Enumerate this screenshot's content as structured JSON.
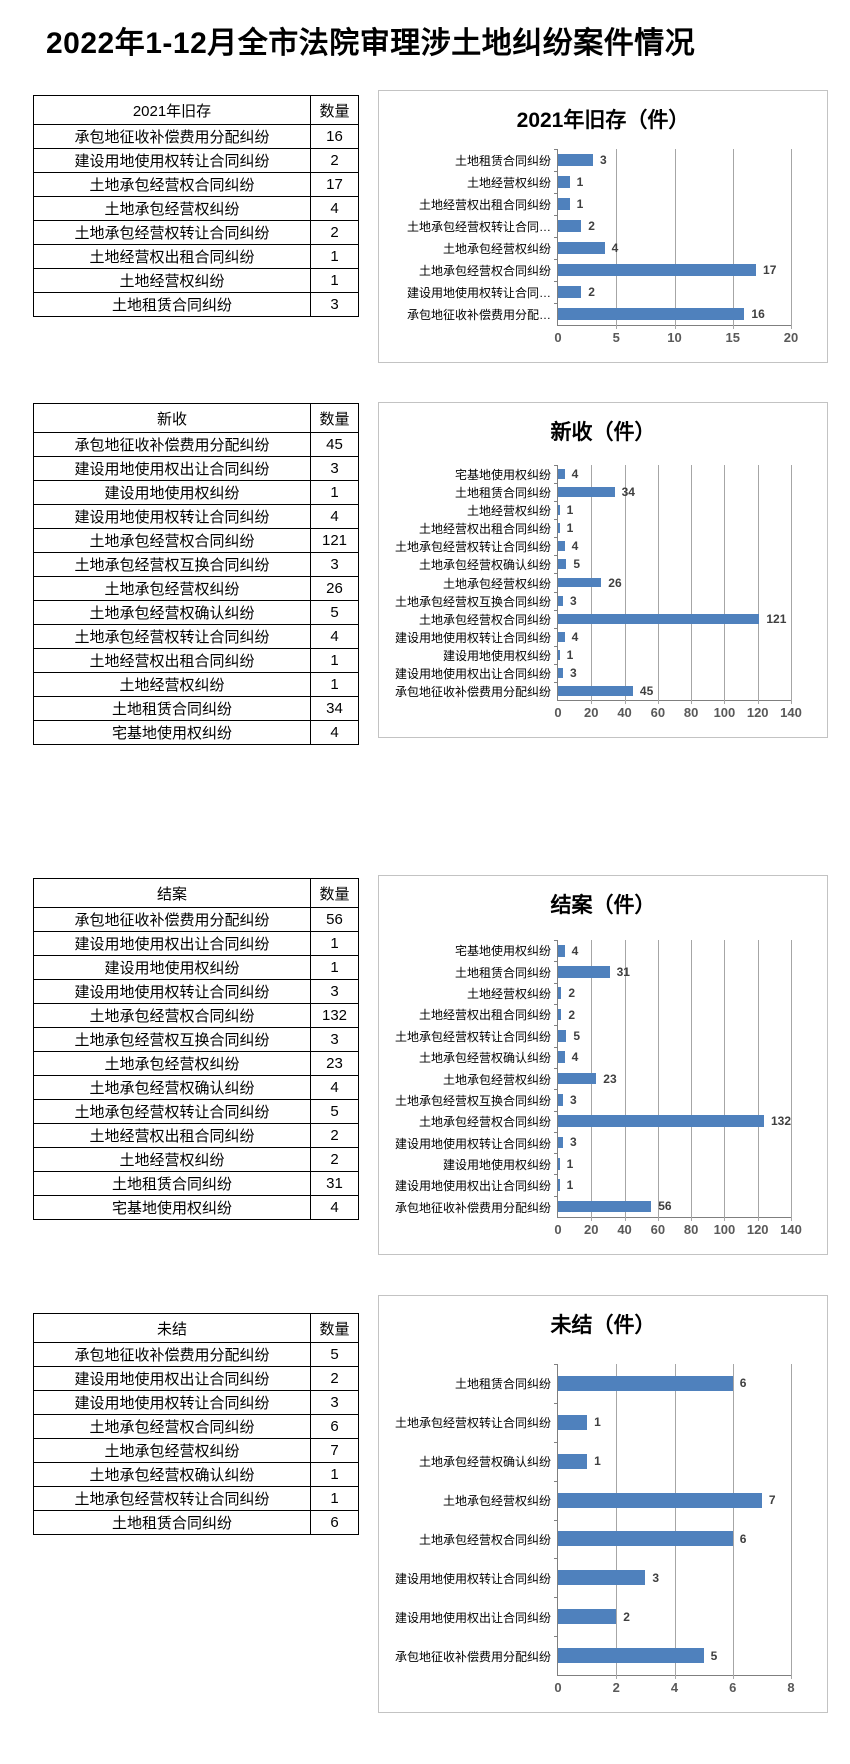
{
  "page": {
    "title": "2022年1-12月全市法院审理涉土地纠纷案件情况"
  },
  "colors": {
    "bar_fill": "#4f81bd",
    "panel_border": "#c3c3c3",
    "grid_line": "#a6a6a6",
    "table_border": "#000000",
    "tick_label": "#595959"
  },
  "sections": [
    {
      "table": {
        "category_header": "2021年旧存",
        "quantity_header": "数量",
        "rows": [
          {
            "label": "承包地征收补偿费用分配纠纷",
            "value": 16
          },
          {
            "label": "建设用地使用权转让合同纠纷",
            "value": 2
          },
          {
            "label": "土地承包经营权合同纠纷",
            "value": 17
          },
          {
            "label": "土地承包经营权纠纷",
            "value": 4
          },
          {
            "label": "土地承包经营权转让合同纠纷",
            "value": 2
          },
          {
            "label": "土地经营权出租合同纠纷",
            "value": 1
          },
          {
            "label": "土地经营权纠纷",
            "value": 1
          },
          {
            "label": "土地租赁合同纠纷",
            "value": 3
          }
        ]
      }
    },
    {
      "table": {
        "category_header": "新收",
        "quantity_header": "数量",
        "rows": [
          {
            "label": "承包地征收补偿费用分配纠纷",
            "value": 45
          },
          {
            "label": "建设用地使用权出让合同纠纷",
            "value": 3
          },
          {
            "label": "建设用地使用权纠纷",
            "value": 1
          },
          {
            "label": "建设用地使用权转让合同纠纷",
            "value": 4
          },
          {
            "label": "土地承包经营权合同纠纷",
            "value": 121
          },
          {
            "label": "土地承包经营权互换合同纠纷",
            "value": 3
          },
          {
            "label": "土地承包经营权纠纷",
            "value": 26
          },
          {
            "label": "土地承包经营权确认纠纷",
            "value": 5
          },
          {
            "label": "土地承包经营权转让合同纠纷",
            "value": 4
          },
          {
            "label": "土地经营权出租合同纠纷",
            "value": 1
          },
          {
            "label": "土地经营权纠纷",
            "value": 1
          },
          {
            "label": "土地租赁合同纠纷",
            "value": 34
          },
          {
            "label": "宅基地使用权纠纷",
            "value": 4
          }
        ]
      }
    },
    {
      "table": {
        "category_header": "结案",
        "quantity_header": "数量",
        "rows": [
          {
            "label": "承包地征收补偿费用分配纠纷",
            "value": 56
          },
          {
            "label": "建设用地使用权出让合同纠纷",
            "value": 1
          },
          {
            "label": "建设用地使用权纠纷",
            "value": 1
          },
          {
            "label": "建设用地使用权转让合同纠纷",
            "value": 3
          },
          {
            "label": "土地承包经营权合同纠纷",
            "value": 132
          },
          {
            "label": "土地承包经营权互换合同纠纷",
            "value": 3
          },
          {
            "label": "土地承包经营权纠纷",
            "value": 23
          },
          {
            "label": "土地承包经营权确认纠纷",
            "value": 4
          },
          {
            "label": "土地承包经营权转让合同纠纷",
            "value": 5
          },
          {
            "label": "土地经营权出租合同纠纷",
            "value": 2
          },
          {
            "label": "土地经营权纠纷",
            "value": 2
          },
          {
            "label": "土地租赁合同纠纷",
            "value": 31
          },
          {
            "label": "宅基地使用权纠纷",
            "value": 4
          }
        ]
      }
    },
    {
      "table": {
        "category_header": "未结",
        "quantity_header": "数量",
        "rows": [
          {
            "label": "承包地征收补偿费用分配纠纷",
            "value": 5
          },
          {
            "label": "建设用地使用权出让合同纠纷",
            "value": 2
          },
          {
            "label": "建设用地使用权转让合同纠纷",
            "value": 3
          },
          {
            "label": "土地承包经营权合同纠纷",
            "value": 6
          },
          {
            "label": "土地承包经营权纠纷",
            "value": 7
          },
          {
            "label": "土地承包经营权确认纠纷",
            "value": 1
          },
          {
            "label": "土地承包经营权转让合同纠纷",
            "value": 1
          },
          {
            "label": "土地租赁合同纠纷",
            "value": 6
          }
        ]
      }
    }
  ],
  "chart_data": [
    {
      "type": "bar",
      "orientation": "horizontal",
      "title": "2021年旧存（件）",
      "categories": [
        "土地租赁合同纠纷",
        "土地经营权纠纷",
        "土地经营权出租合同纠纷",
        "土地承包经营权转让合同…",
        "土地承包经营权纠纷",
        "土地承包经营权合同纠纷",
        "建设用地使用权转让合同…",
        "承包地征收补偿费用分配…"
      ],
      "values": [
        3,
        1,
        1,
        2,
        4,
        17,
        2,
        16
      ],
      "category_order": "top-to-bottom",
      "xlim": [
        0,
        20
      ],
      "xticks": [
        0,
        5,
        10,
        15,
        20
      ],
      "grid": true,
      "value_labels": true,
      "legend": "none"
    },
    {
      "type": "bar",
      "orientation": "horizontal",
      "title": "新收（件）",
      "categories": [
        "宅基地使用权纠纷",
        "土地租赁合同纠纷",
        "土地经营权纠纷",
        "土地经营权出租合同纠纷",
        "土地承包经营权转让合同纠纷",
        "土地承包经营权确认纠纷",
        "土地承包经营权纠纷",
        "土地承包经营权互换合同纠纷",
        "土地承包经营权合同纠纷",
        "建设用地使用权转让合同纠纷",
        "建设用地使用权纠纷",
        "建设用地使用权出让合同纠纷",
        "承包地征收补偿费用分配纠纷"
      ],
      "values": [
        4,
        34,
        1,
        1,
        4,
        5,
        26,
        3,
        121,
        4,
        1,
        3,
        45
      ],
      "category_order": "top-to-bottom",
      "xlim": [
        0,
        140
      ],
      "xticks": [
        0,
        20,
        40,
        60,
        80,
        100,
        120,
        140
      ],
      "grid": true,
      "value_labels": true,
      "legend": "none"
    },
    {
      "type": "bar",
      "orientation": "horizontal",
      "title": "结案（件）",
      "categories": [
        "宅基地使用权纠纷",
        "土地租赁合同纠纷",
        "土地经营权纠纷",
        "土地经营权出租合同纠纷",
        "土地承包经营权转让合同纠纷",
        "土地承包经营权确认纠纷",
        "土地承包经营权纠纷",
        "土地承包经营权互换合同纠纷",
        "土地承包经营权合同纠纷",
        "建设用地使用权转让合同纠纷",
        "建设用地使用权纠纷",
        "建设用地使用权出让合同纠纷",
        "承包地征收补偿费用分配纠纷"
      ],
      "values": [
        4,
        31,
        2,
        2,
        5,
        4,
        23,
        3,
        132,
        3,
        1,
        1,
        56
      ],
      "category_order": "top-to-bottom",
      "xlim": [
        0,
        140
      ],
      "xticks": [
        0,
        20,
        40,
        60,
        80,
        100,
        120,
        140
      ],
      "grid": true,
      "value_labels": true,
      "legend": "none"
    },
    {
      "type": "bar",
      "orientation": "horizontal",
      "title": "未结（件）",
      "categories": [
        "土地租赁合同纠纷",
        "土地承包经营权转让合同纠纷",
        "土地承包经营权确认纠纷",
        "土地承包经营权纠纷",
        "土地承包经营权合同纠纷",
        "建设用地使用权转让合同纠纷",
        "建设用地使用权出让合同纠纷",
        "承包地征收补偿费用分配纠纷"
      ],
      "values": [
        6,
        1,
        1,
        7,
        6,
        3,
        2,
        5
      ],
      "category_order": "top-to-bottom",
      "xlim": [
        0,
        8
      ],
      "xticks": [
        0,
        2,
        4,
        6,
        8
      ],
      "grid": true,
      "value_labels": true,
      "legend": "none"
    }
  ]
}
